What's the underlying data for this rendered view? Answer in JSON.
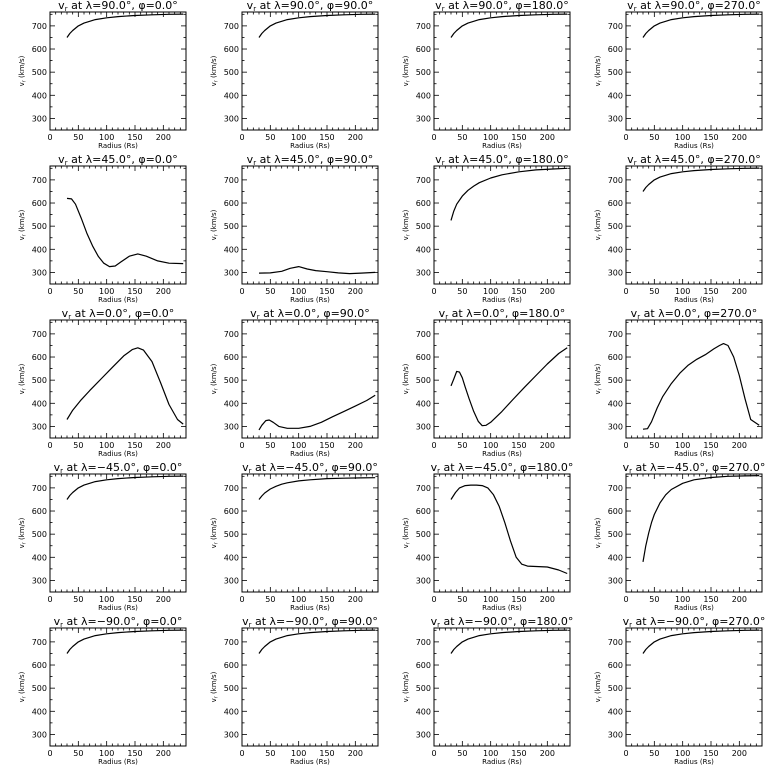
{
  "chart_data": [
    {
      "type": "line",
      "title": "v_r at λ=90.0°, φ=0.0°",
      "lambda": "90.0",
      "phi": "0.0",
      "xlabel": "Radius (Rs)",
      "ylabel": "v_r (km/s)",
      "xlim": [
        0,
        240
      ],
      "ylim": [
        250,
        760
      ],
      "xticks": [
        0,
        50,
        100,
        150,
        200
      ],
      "yticks": [
        300,
        400,
        500,
        600,
        700
      ],
      "x": [
        30,
        35,
        40,
        50,
        60,
        70,
        80,
        100,
        120,
        150,
        180,
        210,
        235
      ],
      "y": [
        650,
        667,
        680,
        700,
        712,
        720,
        727,
        735,
        740,
        745,
        748,
        750,
        751
      ]
    },
    {
      "type": "line",
      "title": "v_r at λ=90.0°, φ=90.0°",
      "lambda": "90.0",
      "phi": "90.0",
      "xlabel": "Radius (Rs)",
      "ylabel": "v_r (km/s)",
      "xlim": [
        0,
        240
      ],
      "ylim": [
        250,
        760
      ],
      "xticks": [
        0,
        50,
        100,
        150,
        200
      ],
      "yticks": [
        300,
        400,
        500,
        600,
        700
      ],
      "x": [
        30,
        35,
        40,
        50,
        60,
        70,
        80,
        100,
        120,
        150,
        180,
        210,
        235
      ],
      "y": [
        650,
        667,
        680,
        700,
        712,
        720,
        727,
        735,
        740,
        745,
        748,
        750,
        751
      ]
    },
    {
      "type": "line",
      "title": "v_r at λ=90.0°, φ=180.0°",
      "lambda": "90.0",
      "phi": "180.0",
      "xlabel": "Radius (Rs)",
      "ylabel": "v_r (km/s)",
      "xlim": [
        0,
        240
      ],
      "ylim": [
        250,
        760
      ],
      "xticks": [
        0,
        50,
        100,
        150,
        200
      ],
      "yticks": [
        300,
        400,
        500,
        600,
        700
      ],
      "x": [
        30,
        35,
        40,
        50,
        60,
        70,
        80,
        100,
        120,
        150,
        180,
        210,
        235
      ],
      "y": [
        650,
        667,
        680,
        700,
        712,
        720,
        727,
        735,
        740,
        745,
        748,
        750,
        751
      ]
    },
    {
      "type": "line",
      "title": "v_r at λ=90.0°, φ=270.0°",
      "lambda": "90.0",
      "phi": "270.0",
      "xlabel": "Radius (Rs)",
      "ylabel": "v_r (km/s)",
      "xlim": [
        0,
        240
      ],
      "ylim": [
        250,
        760
      ],
      "xticks": [
        0,
        50,
        100,
        150,
        200
      ],
      "yticks": [
        300,
        400,
        500,
        600,
        700
      ],
      "x": [
        30,
        35,
        40,
        50,
        60,
        70,
        80,
        100,
        120,
        150,
        180,
        210,
        235
      ],
      "y": [
        650,
        667,
        680,
        700,
        712,
        720,
        727,
        735,
        740,
        745,
        748,
        750,
        751
      ]
    },
    {
      "type": "line",
      "title": "v_r at λ=45.0°, φ=0.0°",
      "lambda": "45.0",
      "phi": "0.0",
      "xlabel": "Radius (Rs)",
      "ylabel": "v_r (km/s)",
      "xlim": [
        0,
        240
      ],
      "ylim": [
        250,
        760
      ],
      "xticks": [
        0,
        50,
        100,
        150,
        200
      ],
      "yticks": [
        300,
        400,
        500,
        600,
        700
      ],
      "x": [
        30,
        38,
        45,
        55,
        65,
        75,
        85,
        95,
        105,
        115,
        125,
        140,
        155,
        170,
        190,
        210,
        235
      ],
      "y": [
        620,
        618,
        595,
        535,
        470,
        415,
        370,
        340,
        325,
        328,
        345,
        370,
        380,
        370,
        350,
        340,
        338
      ]
    },
    {
      "type": "line",
      "title": "v_r at λ=45.0°, φ=90.0°",
      "lambda": "45.0",
      "phi": "90.0",
      "xlabel": "Radius (Rs)",
      "ylabel": "v_r (km/s)",
      "xlim": [
        0,
        240
      ],
      "ylim": [
        250,
        760
      ],
      "xticks": [
        0,
        50,
        100,
        150,
        200
      ],
      "yticks": [
        300,
        400,
        500,
        600,
        700
      ],
      "x": [
        30,
        50,
        70,
        85,
        100,
        115,
        130,
        150,
        170,
        190,
        210,
        235
      ],
      "y": [
        297,
        298,
        305,
        318,
        325,
        315,
        308,
        303,
        298,
        295,
        297,
        300
      ]
    },
    {
      "type": "line",
      "title": "v_r at λ=45.0°, φ=180.0°",
      "lambda": "45.0",
      "phi": "180.0",
      "xlabel": "Radius (Rs)",
      "ylabel": "v_r (km/s)",
      "xlim": [
        0,
        240
      ],
      "ylim": [
        250,
        760
      ],
      "xticks": [
        0,
        50,
        100,
        150,
        200
      ],
      "yticks": [
        300,
        400,
        500,
        600,
        700
      ],
      "x": [
        30,
        35,
        40,
        50,
        60,
        70,
        80,
        100,
        120,
        150,
        180,
        210,
        235
      ],
      "y": [
        525,
        565,
        595,
        630,
        655,
        673,
        688,
        708,
        722,
        735,
        743,
        747,
        750
      ]
    },
    {
      "type": "line",
      "title": "v_r at λ=45.0°, φ=270.0°",
      "lambda": "45.0",
      "phi": "270.0",
      "xlabel": "Radius (Rs)",
      "ylabel": "v_r (km/s)",
      "xlim": [
        0,
        240
      ],
      "ylim": [
        250,
        760
      ],
      "xticks": [
        0,
        50,
        100,
        150,
        200
      ],
      "yticks": [
        300,
        400,
        500,
        600,
        700
      ],
      "x": [
        30,
        35,
        40,
        50,
        60,
        70,
        80,
        100,
        120,
        150,
        180,
        210,
        235
      ],
      "y": [
        650,
        667,
        680,
        700,
        712,
        720,
        727,
        735,
        740,
        745,
        748,
        750,
        751
      ]
    },
    {
      "type": "line",
      "title": "v_r at λ=0.0°, φ=0.0°",
      "lambda": "0.0",
      "phi": "0.0",
      "xlabel": "Radius (Rs)",
      "ylabel": "v_r (km/s)",
      "xlim": [
        0,
        240
      ],
      "ylim": [
        250,
        760
      ],
      "xticks": [
        0,
        50,
        100,
        150,
        200
      ],
      "yticks": [
        300,
        400,
        500,
        600,
        700
      ],
      "x": [
        30,
        40,
        55,
        70,
        90,
        110,
        130,
        145,
        155,
        165,
        180,
        195,
        210,
        225,
        235
      ],
      "y": [
        330,
        370,
        415,
        455,
        505,
        555,
        605,
        632,
        640,
        630,
        580,
        490,
        395,
        330,
        310
      ]
    },
    {
      "type": "line",
      "title": "v_r at λ=0.0°, φ=90.0°",
      "lambda": "0.0",
      "phi": "90.0",
      "xlabel": "Radius (Rs)",
      "ylabel": "v_r (km/s)",
      "xlim": [
        0,
        240
      ],
      "ylim": [
        250,
        760
      ],
      "xticks": [
        0,
        50,
        100,
        150,
        200
      ],
      "yticks": [
        300,
        400,
        500,
        600,
        700
      ],
      "x": [
        30,
        35,
        42,
        48,
        55,
        65,
        80,
        100,
        120,
        140,
        160,
        180,
        200,
        220,
        235
      ],
      "y": [
        285,
        305,
        325,
        328,
        318,
        300,
        292,
        292,
        300,
        318,
        342,
        365,
        388,
        412,
        435
      ]
    },
    {
      "type": "line",
      "title": "v_r at λ=0.0°, φ=180.0°",
      "lambda": "0.0",
      "phi": "180.0",
      "xlabel": "Radius (Rs)",
      "ylabel": "v_r (km/s)",
      "xlim": [
        0,
        240
      ],
      "ylim": [
        250,
        760
      ],
      "xticks": [
        0,
        50,
        100,
        150,
        200
      ],
      "yticks": [
        300,
        400,
        500,
        600,
        700
      ],
      "x": [
        30,
        35,
        40,
        45,
        50,
        55,
        62,
        70,
        78,
        85,
        92,
        100,
        120,
        140,
        160,
        180,
        200,
        220,
        235
      ],
      "y": [
        475,
        505,
        538,
        535,
        510,
        470,
        420,
        365,
        322,
        303,
        305,
        318,
        365,
        418,
        470,
        520,
        570,
        615,
        640
      ]
    },
    {
      "type": "line",
      "title": "v_r at λ=0.0°, φ=270.0°",
      "lambda": "0.0",
      "phi": "270.0",
      "xlabel": "Radius (Rs)",
      "ylabel": "v_r (km/s)",
      "xlim": [
        0,
        240
      ],
      "ylim": [
        250,
        760
      ],
      "xticks": [
        0,
        50,
        100,
        150,
        200
      ],
      "yticks": [
        300,
        400,
        500,
        600,
        700
      ],
      "x": [
        30,
        38,
        45,
        55,
        65,
        80,
        95,
        110,
        125,
        140,
        155,
        165,
        172,
        180,
        190,
        200,
        210,
        220,
        235
      ],
      "y": [
        288,
        290,
        320,
        380,
        430,
        485,
        530,
        565,
        590,
        610,
        635,
        650,
        658,
        650,
        600,
        520,
        420,
        330,
        305
      ]
    },
    {
      "type": "line",
      "title": "v_r at λ=−45.0°, φ=0.0°",
      "lambda": "−45.0",
      "phi": "0.0",
      "xlabel": "Radius (Rs)",
      "ylabel": "v_r (km/s)",
      "xlim": [
        0,
        240
      ],
      "ylim": [
        250,
        760
      ],
      "xticks": [
        0,
        50,
        100,
        150,
        200
      ],
      "yticks": [
        300,
        400,
        500,
        600,
        700
      ],
      "x": [
        30,
        35,
        40,
        50,
        60,
        70,
        80,
        100,
        120,
        150,
        180,
        210,
        235
      ],
      "y": [
        650,
        667,
        680,
        700,
        712,
        720,
        727,
        735,
        740,
        745,
        748,
        750,
        751
      ]
    },
    {
      "type": "line",
      "title": "v_r at λ=−45.0°, φ=90.0°",
      "lambda": "−45.0",
      "phi": "90.0",
      "xlabel": "Radius (Rs)",
      "ylabel": "v_r (km/s)",
      "xlim": [
        0,
        240
      ],
      "ylim": [
        250,
        760
      ],
      "xticks": [
        0,
        50,
        100,
        150,
        200
      ],
      "yticks": [
        300,
        400,
        500,
        600,
        700
      ],
      "x": [
        30,
        35,
        40,
        50,
        60,
        70,
        80,
        100,
        120,
        150,
        180,
        210,
        235
      ],
      "y": [
        650,
        665,
        678,
        695,
        707,
        716,
        722,
        730,
        735,
        740,
        742,
        743,
        744
      ]
    },
    {
      "type": "line",
      "title": "v_r at λ=−45.0°, φ=180.0°",
      "lambda": "−45.0",
      "phi": "180.0",
      "xlabel": "Radius (Rs)",
      "ylabel": "v_r (km/s)",
      "xlim": [
        0,
        240
      ],
      "ylim": [
        250,
        760
      ],
      "xticks": [
        0,
        50,
        100,
        150,
        200
      ],
      "yticks": [
        300,
        400,
        500,
        600,
        700
      ],
      "x": [
        30,
        38,
        45,
        55,
        65,
        75,
        85,
        95,
        105,
        115,
        125,
        135,
        145,
        155,
        165,
        180,
        200,
        220,
        235
      ],
      "y": [
        650,
        680,
        700,
        710,
        712,
        712,
        710,
        700,
        670,
        620,
        550,
        470,
        400,
        370,
        362,
        360,
        358,
        345,
        330
      ]
    },
    {
      "type": "line",
      "title": "v_r at λ=−45.0°, φ=270.0°",
      "lambda": "−45.0",
      "phi": "270.0",
      "xlabel": "Radius (Rs)",
      "ylabel": "v_r (km/s)",
      "xlim": [
        0,
        240
      ],
      "ylim": [
        250,
        760
      ],
      "xticks": [
        0,
        50,
        100,
        150,
        200
      ],
      "yticks": [
        300,
        400,
        500,
        600,
        700
      ],
      "x": [
        30,
        35,
        40,
        45,
        50,
        60,
        70,
        80,
        100,
        120,
        150,
        180,
        210,
        235
      ],
      "y": [
        380,
        450,
        505,
        550,
        585,
        635,
        670,
        693,
        720,
        735,
        745,
        750,
        752,
        753
      ]
    },
    {
      "type": "line",
      "title": "v_r at λ=−90.0°, φ=0.0°",
      "lambda": "−90.0",
      "phi": "0.0",
      "xlabel": "Radius (Rs)",
      "ylabel": "v_r (km/s)",
      "xlim": [
        0,
        240
      ],
      "ylim": [
        250,
        760
      ],
      "xticks": [
        0,
        50,
        100,
        150,
        200
      ],
      "yticks": [
        300,
        400,
        500,
        600,
        700
      ],
      "x": [
        30,
        35,
        40,
        50,
        60,
        70,
        80,
        100,
        120,
        150,
        180,
        210,
        235
      ],
      "y": [
        650,
        667,
        680,
        700,
        712,
        720,
        727,
        735,
        740,
        745,
        748,
        750,
        751
      ]
    },
    {
      "type": "line",
      "title": "v_r at λ=−90.0°, φ=90.0°",
      "lambda": "−90.0",
      "phi": "90.0",
      "xlabel": "Radius (Rs)",
      "ylabel": "v_r (km/s)",
      "xlim": [
        0,
        240
      ],
      "ylim": [
        250,
        760
      ],
      "xticks": [
        0,
        50,
        100,
        150,
        200
      ],
      "yticks": [
        300,
        400,
        500,
        600,
        700
      ],
      "x": [
        30,
        35,
        40,
        50,
        60,
        70,
        80,
        100,
        120,
        150,
        180,
        210,
        235
      ],
      "y": [
        650,
        667,
        680,
        700,
        712,
        720,
        727,
        735,
        740,
        745,
        748,
        750,
        751
      ]
    },
    {
      "type": "line",
      "title": "v_r at λ=−90.0°, φ=180.0°",
      "lambda": "−90.0",
      "phi": "180.0",
      "xlabel": "Radius (Rs)",
      "ylabel": "v_r (km/s)",
      "xlim": [
        0,
        240
      ],
      "ylim": [
        250,
        760
      ],
      "xticks": [
        0,
        50,
        100,
        150,
        200
      ],
      "yticks": [
        300,
        400,
        500,
        600,
        700
      ],
      "x": [
        30,
        35,
        40,
        50,
        60,
        70,
        80,
        100,
        120,
        150,
        180,
        210,
        235
      ],
      "y": [
        650,
        667,
        680,
        700,
        712,
        720,
        727,
        735,
        740,
        745,
        748,
        750,
        751
      ]
    },
    {
      "type": "line",
      "title": "v_r at λ=−90.0°, φ=270.0°",
      "lambda": "−90.0",
      "phi": "270.0",
      "xlabel": "Radius (Rs)",
      "ylabel": "v_r (km/s)",
      "xlim": [
        0,
        240
      ],
      "ylim": [
        250,
        760
      ],
      "xticks": [
        0,
        50,
        100,
        150,
        200
      ],
      "yticks": [
        300,
        400,
        500,
        600,
        700
      ],
      "x": [
        30,
        35,
        40,
        50,
        60,
        70,
        80,
        100,
        120,
        150,
        180,
        210,
        235
      ],
      "y": [
        650,
        667,
        680,
        700,
        712,
        720,
        727,
        735,
        740,
        745,
        748,
        750,
        751
      ]
    }
  ]
}
